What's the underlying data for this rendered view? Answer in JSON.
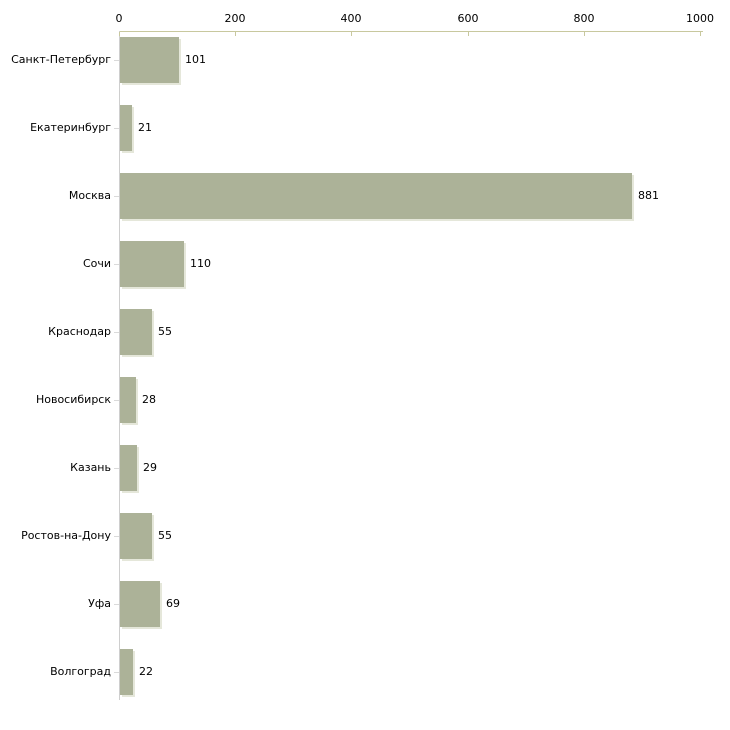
{
  "chart_data": {
    "type": "bar",
    "orientation": "horizontal",
    "title": "",
    "xlabel": "",
    "ylabel": "",
    "grid": false,
    "legend": false,
    "xlim": [
      0,
      1000
    ],
    "x_ticks": [
      "0",
      "200",
      "400",
      "600",
      "800",
      "1000"
    ],
    "x_tick_values": [
      0,
      200,
      400,
      600,
      800,
      1000
    ],
    "categories": [
      "Санкт-Петербург",
      "Екатеринбург",
      "Москва",
      "Сочи",
      "Краснодар",
      "Новосибирск",
      "Казань",
      "Ростов-на-Дону",
      "Уфа",
      "Волгоград"
    ],
    "values": [
      101,
      21,
      881,
      110,
      55,
      28,
      29,
      55,
      69,
      22
    ],
    "value_labels": [
      "101",
      "21",
      "881",
      "110",
      "55",
      "28",
      "29",
      "55",
      "69",
      "22"
    ],
    "colors": {
      "bar_fill": "#acb298",
      "bar_edge": "#cfd4bc",
      "x_axis_line": "#c8c89e",
      "y_axis_line": "#cecece",
      "category_tick": "#dadada",
      "text": "#000000",
      "background": "#ffffff"
    }
  }
}
